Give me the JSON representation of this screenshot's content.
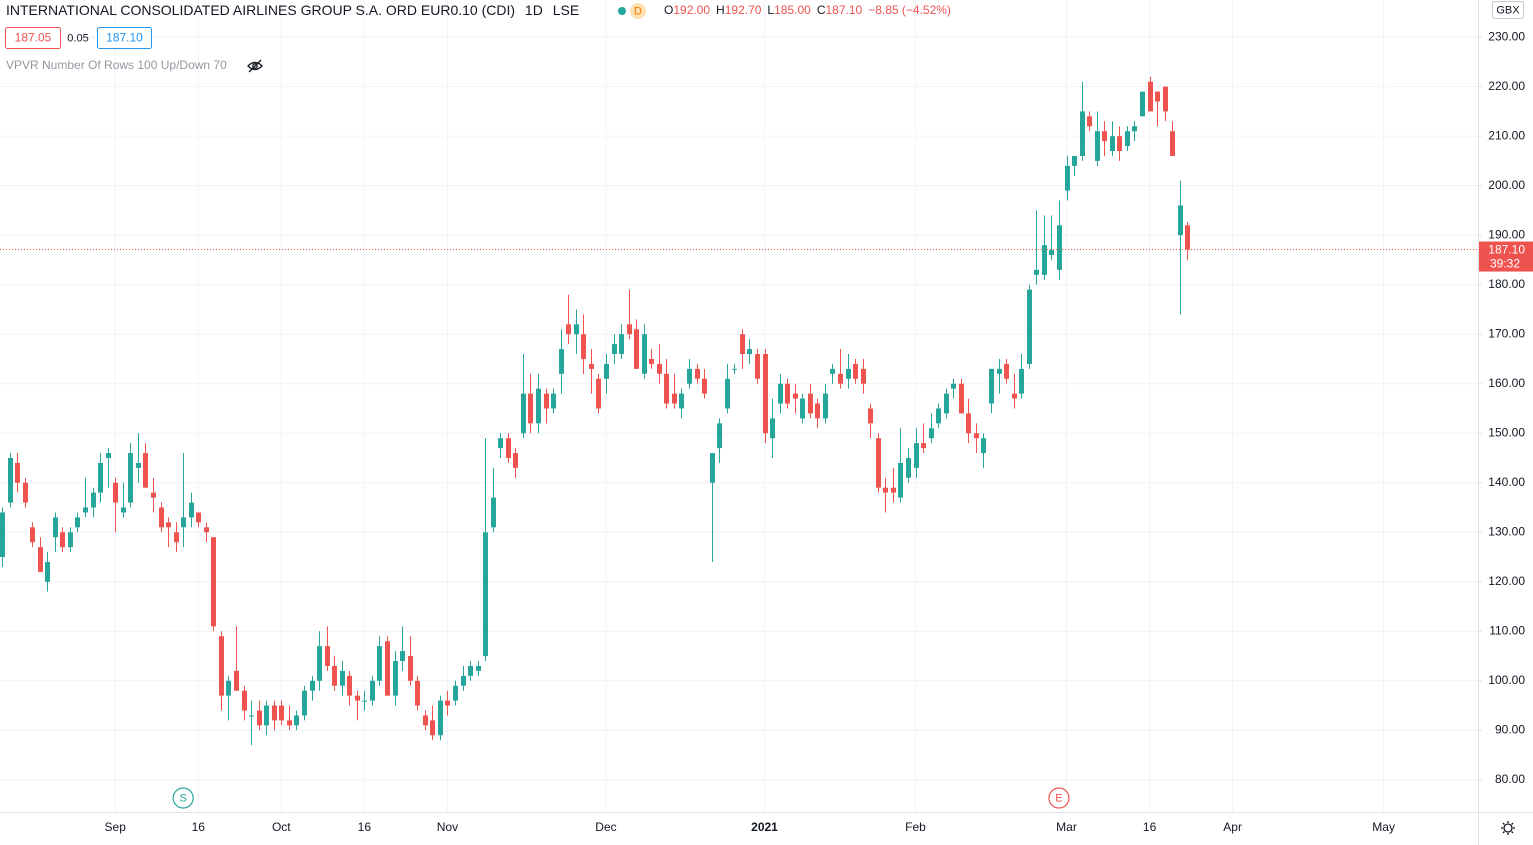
{
  "header": {
    "title": "INTERNATIONAL CONSOLIDATED AIRLINES GROUP S.A. ORD EUR0.10 (CDI)",
    "interval": "1D",
    "exchange": "LSE",
    "badge": "D",
    "ohlc": [
      {
        "key": "O",
        "value": "192.00"
      },
      {
        "key": "H",
        "value": "192.70"
      },
      {
        "key": "L",
        "value": "185.00"
      },
      {
        "key": "C",
        "value": "187.10"
      }
    ],
    "change": "−8.85 (−4.52%)",
    "bid": "187.05",
    "spread": "0.05",
    "ask": "187.10",
    "indicator": "VPVR Number Of Rows 100 Up/Down 70",
    "currency": "GBX"
  },
  "chart_data": {
    "type": "candlestick",
    "up_color": "#26a69a",
    "down_color": "#ef5350",
    "grid": true,
    "open": [
      125,
      136,
      144,
      140,
      131,
      127,
      120,
      129,
      130,
      127,
      131,
      134,
      135,
      138,
      145,
      140,
      134,
      136,
      143,
      146,
      138,
      135,
      132,
      130,
      131,
      133,
      134,
      131,
      129,
      109,
      97,
      102,
      98,
      93,
      94,
      91,
      95,
      95,
      92,
      91,
      93,
      98,
      100,
      107,
      103,
      99,
      101,
      97,
      96,
      96,
      100,
      108,
      97,
      104,
      105,
      100,
      93,
      92,
      89,
      96,
      96,
      99,
      101,
      102,
      105,
      131,
      147,
      149,
      146,
      150,
      158,
      152,
      158,
      155,
      162,
      172,
      170,
      170,
      164,
      161,
      161,
      166,
      166,
      172,
      171,
      162,
      165,
      164,
      162,
      158,
      155,
      160,
      163,
      161,
      140,
      147,
      155,
      163,
      170,
      166,
      166,
      166,
      149,
      156,
      160,
      158,
      153,
      158,
      156,
      153,
      162,
      162,
      161,
      164,
      163,
      155,
      149,
      139,
      139,
      137,
      141,
      143,
      148,
      149,
      152,
      154,
      159,
      160,
      154,
      150,
      146,
      156,
      162,
      164,
      158,
      158,
      164,
      182,
      182,
      186,
      183,
      199,
      204,
      206,
      214,
      205,
      211,
      207,
      210,
      208,
      211,
      214,
      221,
      219,
      220,
      211,
      190,
      192.0
    ],
    "high": [
      135,
      146,
      146,
      141,
      132,
      129,
      126,
      134,
      131,
      131,
      134,
      141,
      139,
      146,
      147,
      141,
      140,
      148,
      150,
      148,
      141,
      136,
      133,
      132,
      146,
      138,
      134,
      132,
      129,
      110,
      101,
      111,
      99,
      96,
      96,
      96,
      96,
      96,
      95,
      94,
      99,
      101,
      110,
      111,
      105,
      104,
      102,
      98,
      98,
      101,
      109,
      109,
      106,
      111,
      109,
      101,
      94,
      95,
      97,
      98,
      100,
      103,
      104,
      104,
      149,
      143,
      150,
      150,
      147,
      166,
      162,
      162,
      159,
      159,
      171,
      178,
      175,
      174,
      167,
      162,
      166,
      170,
      172,
      179,
      173,
      172,
      167,
      168,
      165,
      162,
      159,
      165,
      164,
      163,
      146,
      153,
      164,
      164,
      171,
      169,
      167,
      167,
      157,
      162,
      161,
      160,
      158,
      160,
      157,
      160,
      164,
      167,
      166,
      165,
      165,
      156,
      150,
      141,
      143,
      151,
      147,
      151,
      152,
      154,
      156,
      159,
      161,
      161,
      157,
      152,
      150,
      163,
      165,
      165,
      162,
      166,
      180,
      195,
      194,
      194,
      197,
      206,
      206,
      221,
      215,
      215,
      213,
      213,
      212,
      212,
      213,
      219,
      222,
      219,
      220,
      213,
      201,
      192.7
    ],
    "low": [
      123,
      135,
      138,
      135,
      127,
      122,
      118,
      126,
      126,
      126,
      130,
      133,
      133,
      136,
      139,
      130,
      133,
      135,
      140,
      139,
      134,
      130,
      127,
      126,
      127,
      131,
      131,
      128,
      110,
      94,
      92,
      98,
      92,
      87,
      90,
      89,
      90,
      91,
      90,
      90,
      92,
      96,
      98,
      102,
      98,
      97,
      95,
      92,
      94,
      95,
      99,
      97,
      95,
      102,
      99,
      94,
      90,
      88,
      88,
      93,
      95,
      98,
      100,
      101,
      104,
      130,
      145,
      144,
      141,
      149,
      150,
      150,
      152,
      154,
      158,
      168,
      166,
      162,
      158,
      154,
      158,
      164,
      165,
      169,
      163,
      161,
      163,
      160,
      155,
      155,
      153,
      159,
      160,
      157,
      124,
      144,
      154,
      162,
      163,
      164,
      160,
      148,
      145,
      154,
      155,
      154,
      152,
      153,
      151,
      152,
      160,
      159,
      159,
      160,
      158,
      149,
      138,
      134,
      136,
      136,
      140,
      141,
      146,
      148,
      151,
      153,
      157,
      154,
      148,
      146,
      143,
      154,
      158,
      160,
      155,
      157,
      163,
      180,
      181,
      185,
      181,
      197,
      202,
      205,
      211,
      204,
      206,
      206,
      205,
      207,
      209,
      214,
      215,
      212,
      213,
      206,
      174,
      185.0
    ],
    "close": [
      134,
      145,
      140,
      136,
      128,
      122,
      124,
      133,
      127,
      130,
      133,
      135,
      138,
      144,
      146,
      136,
      135,
      146,
      144,
      139,
      137,
      131,
      131,
      128,
      133,
      136,
      132,
      130,
      111,
      97,
      100,
      98,
      94,
      93,
      91,
      95,
      92,
      92,
      91,
      93,
      98,
      100,
      107,
      103,
      99,
      102,
      97,
      96,
      96,
      100,
      107,
      97,
      104,
      106,
      100,
      95,
      91,
      89,
      96,
      95,
      99,
      101,
      103,
      103,
      130,
      137,
      149,
      145,
      143,
      158,
      152,
      159,
      155,
      158,
      167,
      170,
      172,
      165,
      163,
      155,
      164,
      168,
      170,
      170,
      163,
      170,
      164,
      162,
      156,
      156,
      158,
      163,
      161,
      158,
      146,
      152,
      161,
      163,
      166,
      167,
      161,
      150,
      153,
      160,
      156,
      157,
      157,
      154,
      153,
      158,
      163,
      160,
      163,
      161,
      160,
      152,
      139,
      138,
      138,
      144,
      145,
      148,
      147,
      151,
      155,
      158,
      160,
      154,
      150,
      149,
      149,
      163,
      163,
      161,
      157,
      163,
      179,
      183,
      188,
      187,
      192,
      204,
      206,
      215,
      212,
      211,
      209,
      210,
      207,
      211,
      212,
      219,
      215,
      217,
      215,
      206,
      196,
      187.1
    ],
    "xlim": [
      -0.26,
      195.5
    ],
    "xticks": [
      {
        "value": 15,
        "label": "Sep"
      },
      {
        "value": 26,
        "label": "16"
      },
      {
        "value": 37,
        "label": "Oct"
      },
      {
        "value": 48,
        "label": "16"
      },
      {
        "value": 59,
        "label": "Nov"
      },
      {
        "value": 80,
        "label": "Dec"
      },
      {
        "value": 101,
        "label": "2021"
      },
      {
        "value": 121,
        "label": "Feb"
      },
      {
        "value": 141,
        "label": "Mar"
      },
      {
        "value": 152,
        "label": "16"
      },
      {
        "value": 163,
        "label": "Apr"
      },
      {
        "value": 183,
        "label": "May"
      }
    ],
    "ylim": [
      73.5,
      237.5
    ],
    "yticks": [
      {
        "value": 80,
        "label": "80.00"
      },
      {
        "value": 90,
        "label": "90.00"
      },
      {
        "value": 100,
        "label": "100.00"
      },
      {
        "value": 110,
        "label": "110.00"
      },
      {
        "value": 120,
        "label": "120.00"
      },
      {
        "value": 130,
        "label": "130.00"
      },
      {
        "value": 140,
        "label": "140.00"
      },
      {
        "value": 150,
        "label": "150.00"
      },
      {
        "value": 160,
        "label": "160.00"
      },
      {
        "value": 170,
        "label": "170.00"
      },
      {
        "value": 180,
        "label": "180.00"
      },
      {
        "value": 190,
        "label": "190.00"
      },
      {
        "value": 200,
        "label": "200.00"
      },
      {
        "value": 210,
        "label": "210.00"
      },
      {
        "value": 220,
        "label": "220.00"
      },
      {
        "value": 230,
        "label": "230.00"
      }
    ],
    "last_price": {
      "value": 187.1,
      "label": "187.10"
    },
    "countdown": "39:32",
    "events": [
      {
        "label": "S",
        "x": 24,
        "color": "#26a69a"
      },
      {
        "label": "E",
        "x": 140,
        "color": "#ef5350"
      }
    ]
  }
}
